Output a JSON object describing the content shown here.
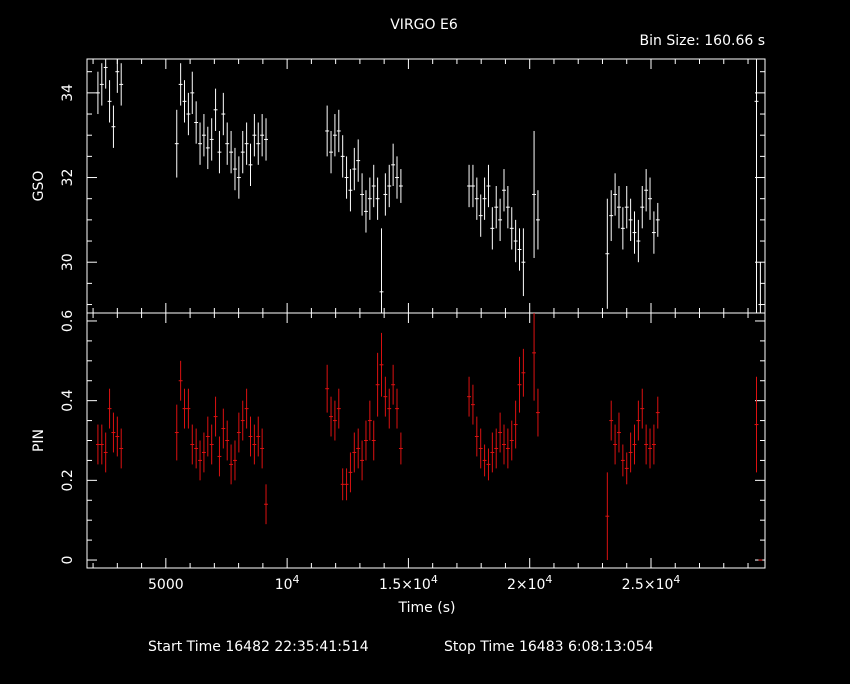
{
  "chart_data": {
    "type": "scatter",
    "title": "VIRGO E6",
    "bin_size_label": "Bin Size:  160.66 s",
    "xlabel": "Time (s)",
    "xlim": [
      1750,
      29700
    ],
    "x_ticks": [
      {
        "value": 5000,
        "label": "5000"
      },
      {
        "value": 10000,
        "label": "10",
        "exp": "4"
      },
      {
        "value": 15000,
        "label": "1.5×10",
        "exp": "4"
      },
      {
        "value": 20000,
        "label": "2×10",
        "exp": "4"
      },
      {
        "value": 25000,
        "label": "2.5×10",
        "exp": "4"
      }
    ],
    "footer": {
      "start_label": "Start Time 16482 22:35:41:514",
      "stop_label": "Stop Time 16483  6:08:13:054"
    },
    "panels": [
      {
        "name": "GSO",
        "ylabel": "GSO",
        "color": "#ffffff",
        "ylim": [
          28.8,
          34.8
        ],
        "y_ticks": [
          30,
          32,
          34
        ],
        "y_tick_labels": [
          "30",
          "32",
          "34"
        ],
        "points": [
          {
            "x": 2200,
            "y": 34.0,
            "yerr": 0.5
          },
          {
            "x": 2360,
            "y": 34.2,
            "yerr": 0.5
          },
          {
            "x": 2520,
            "y": 34.6,
            "yerr": 0.5
          },
          {
            "x": 2680,
            "y": 33.8,
            "yerr": 0.5
          },
          {
            "x": 2840,
            "y": 33.2,
            "yerr": 0.5
          },
          {
            "x": 3000,
            "y": 34.5,
            "yerr": 0.5
          },
          {
            "x": 3160,
            "y": 34.2,
            "yerr": 0.5
          },
          {
            "x": 5450,
            "y": 32.8,
            "yerr": 0.8
          },
          {
            "x": 5610,
            "y": 34.2,
            "yerr": 0.5
          },
          {
            "x": 5770,
            "y": 33.8,
            "yerr": 0.5
          },
          {
            "x": 5930,
            "y": 33.5,
            "yerr": 0.5
          },
          {
            "x": 6090,
            "y": 34.0,
            "yerr": 0.5
          },
          {
            "x": 6250,
            "y": 33.3,
            "yerr": 0.5
          },
          {
            "x": 6410,
            "y": 32.8,
            "yerr": 0.5
          },
          {
            "x": 6570,
            "y": 33.0,
            "yerr": 0.5
          },
          {
            "x": 6730,
            "y": 32.7,
            "yerr": 0.5
          },
          {
            "x": 6890,
            "y": 32.9,
            "yerr": 0.5
          },
          {
            "x": 7050,
            "y": 33.6,
            "yerr": 0.5
          },
          {
            "x": 7210,
            "y": 32.6,
            "yerr": 0.5
          },
          {
            "x": 7370,
            "y": 33.5,
            "yerr": 0.5
          },
          {
            "x": 7530,
            "y": 32.8,
            "yerr": 0.5
          },
          {
            "x": 7690,
            "y": 32.6,
            "yerr": 0.5
          },
          {
            "x": 7850,
            "y": 32.2,
            "yerr": 0.5
          },
          {
            "x": 8010,
            "y": 32.0,
            "yerr": 0.5
          },
          {
            "x": 8170,
            "y": 32.6,
            "yerr": 0.5
          },
          {
            "x": 8330,
            "y": 32.8,
            "yerr": 0.5
          },
          {
            "x": 8490,
            "y": 32.3,
            "yerr": 0.5
          },
          {
            "x": 8650,
            "y": 33.0,
            "yerr": 0.5
          },
          {
            "x": 8810,
            "y": 32.8,
            "yerr": 0.5
          },
          {
            "x": 8970,
            "y": 33.0,
            "yerr": 0.5
          },
          {
            "x": 9130,
            "y": 32.9,
            "yerr": 0.5
          },
          {
            "x": 11650,
            "y": 33.1,
            "yerr": 0.6
          },
          {
            "x": 11810,
            "y": 32.6,
            "yerr": 0.5
          },
          {
            "x": 11970,
            "y": 33.0,
            "yerr": 0.5
          },
          {
            "x": 12130,
            "y": 33.1,
            "yerr": 0.5
          },
          {
            "x": 12290,
            "y": 32.5,
            "yerr": 0.5
          },
          {
            "x": 12450,
            "y": 32.0,
            "yerr": 0.5
          },
          {
            "x": 12610,
            "y": 31.7,
            "yerr": 0.5
          },
          {
            "x": 12770,
            "y": 32.2,
            "yerr": 0.5
          },
          {
            "x": 12930,
            "y": 32.4,
            "yerr": 0.5
          },
          {
            "x": 13090,
            "y": 31.6,
            "yerr": 0.5
          },
          {
            "x": 13250,
            "y": 31.2,
            "yerr": 0.5
          },
          {
            "x": 13410,
            "y": 31.5,
            "yerr": 0.5
          },
          {
            "x": 13570,
            "y": 31.8,
            "yerr": 0.5
          },
          {
            "x": 13730,
            "y": 31.5,
            "yerr": 0.5
          },
          {
            "x": 13890,
            "y": 29.3,
            "yerr": 1.5
          },
          {
            "x": 14050,
            "y": 31.6,
            "yerr": 0.5
          },
          {
            "x": 14210,
            "y": 31.8,
            "yerr": 0.5
          },
          {
            "x": 14370,
            "y": 32.3,
            "yerr": 0.5
          },
          {
            "x": 14530,
            "y": 32.0,
            "yerr": 0.5
          },
          {
            "x": 14690,
            "y": 31.8,
            "yerr": 0.4
          },
          {
            "x": 17500,
            "y": 31.8,
            "yerr": 0.5
          },
          {
            "x": 17660,
            "y": 31.8,
            "yerr": 0.5
          },
          {
            "x": 17820,
            "y": 31.5,
            "yerr": 0.5
          },
          {
            "x": 17980,
            "y": 31.1,
            "yerr": 0.5
          },
          {
            "x": 18140,
            "y": 31.5,
            "yerr": 0.5
          },
          {
            "x": 18300,
            "y": 31.8,
            "yerr": 0.5
          },
          {
            "x": 18460,
            "y": 30.8,
            "yerr": 0.5
          },
          {
            "x": 18620,
            "y": 31.3,
            "yerr": 0.5
          },
          {
            "x": 18780,
            "y": 31.0,
            "yerr": 0.5
          },
          {
            "x": 18940,
            "y": 31.7,
            "yerr": 0.5
          },
          {
            "x": 19100,
            "y": 31.3,
            "yerr": 0.5
          },
          {
            "x": 19260,
            "y": 30.8,
            "yerr": 0.5
          },
          {
            "x": 19420,
            "y": 30.5,
            "yerr": 0.5
          },
          {
            "x": 19580,
            "y": 30.3,
            "yerr": 0.5
          },
          {
            "x": 19740,
            "y": 30.0,
            "yerr": 0.8
          },
          {
            "x": 20180,
            "y": 31.6,
            "yerr": 1.5
          },
          {
            "x": 20340,
            "y": 31.0,
            "yerr": 0.7
          },
          {
            "x": 23200,
            "y": 30.2,
            "yerr": 1.3
          },
          {
            "x": 23360,
            "y": 31.1,
            "yerr": 0.6
          },
          {
            "x": 23520,
            "y": 31.6,
            "yerr": 0.5
          },
          {
            "x": 23680,
            "y": 31.3,
            "yerr": 0.5
          },
          {
            "x": 23840,
            "y": 30.8,
            "yerr": 0.5
          },
          {
            "x": 24000,
            "y": 31.3,
            "yerr": 0.5
          },
          {
            "x": 24160,
            "y": 31.0,
            "yerr": 0.5
          },
          {
            "x": 24320,
            "y": 30.7,
            "yerr": 0.5
          },
          {
            "x": 24480,
            "y": 30.5,
            "yerr": 0.5
          },
          {
            "x": 24640,
            "y": 31.3,
            "yerr": 0.5
          },
          {
            "x": 24800,
            "y": 31.7,
            "yerr": 0.5
          },
          {
            "x": 24960,
            "y": 31.5,
            "yerr": 0.5
          },
          {
            "x": 25120,
            "y": 30.7,
            "yerr": 0.5
          },
          {
            "x": 25280,
            "y": 31.0,
            "yerr": 0.4
          },
          {
            "x": 29350,
            "y": 33.8,
            "yerr": 5.0
          },
          {
            "x": 29510,
            "y": 29.0,
            "yerr": 1.0
          }
        ]
      },
      {
        "name": "PIN",
        "ylabel": "PIN",
        "color": "#dd1111",
        "ylim": [
          -0.02,
          0.62
        ],
        "y_ticks": [
          0,
          0.2,
          0.4,
          0.6
        ],
        "y_tick_labels": [
          "0",
          "0.2",
          "0.4",
          "0.6"
        ],
        "points": [
          {
            "x": 2200,
            "y": 0.29,
            "yerr": 0.05
          },
          {
            "x": 2360,
            "y": 0.29,
            "yerr": 0.05
          },
          {
            "x": 2520,
            "y": 0.27,
            "yerr": 0.05
          },
          {
            "x": 2680,
            "y": 0.38,
            "yerr": 0.05
          },
          {
            "x": 2840,
            "y": 0.32,
            "yerr": 0.05
          },
          {
            "x": 3000,
            "y": 0.31,
            "yerr": 0.05
          },
          {
            "x": 3160,
            "y": 0.28,
            "yerr": 0.05
          },
          {
            "x": 5450,
            "y": 0.32,
            "yerr": 0.07
          },
          {
            "x": 5610,
            "y": 0.45,
            "yerr": 0.05
          },
          {
            "x": 5770,
            "y": 0.38,
            "yerr": 0.05
          },
          {
            "x": 5930,
            "y": 0.38,
            "yerr": 0.05
          },
          {
            "x": 6090,
            "y": 0.29,
            "yerr": 0.05
          },
          {
            "x": 6250,
            "y": 0.28,
            "yerr": 0.05
          },
          {
            "x": 6410,
            "y": 0.25,
            "yerr": 0.05
          },
          {
            "x": 6570,
            "y": 0.27,
            "yerr": 0.05
          },
          {
            "x": 6730,
            "y": 0.31,
            "yerr": 0.05
          },
          {
            "x": 6890,
            "y": 0.29,
            "yerr": 0.05
          },
          {
            "x": 7050,
            "y": 0.36,
            "yerr": 0.05
          },
          {
            "x": 7210,
            "y": 0.26,
            "yerr": 0.05
          },
          {
            "x": 7370,
            "y": 0.33,
            "yerr": 0.05
          },
          {
            "x": 7530,
            "y": 0.3,
            "yerr": 0.05
          },
          {
            "x": 7690,
            "y": 0.24,
            "yerr": 0.05
          },
          {
            "x": 7850,
            "y": 0.25,
            "yerr": 0.05
          },
          {
            "x": 8010,
            "y": 0.32,
            "yerr": 0.05
          },
          {
            "x": 8170,
            "y": 0.35,
            "yerr": 0.05
          },
          {
            "x": 8330,
            "y": 0.38,
            "yerr": 0.05
          },
          {
            "x": 8490,
            "y": 0.31,
            "yerr": 0.05
          },
          {
            "x": 8650,
            "y": 0.29,
            "yerr": 0.05
          },
          {
            "x": 8810,
            "y": 0.31,
            "yerr": 0.05
          },
          {
            "x": 8970,
            "y": 0.28,
            "yerr": 0.05
          },
          {
            "x": 9130,
            "y": 0.14,
            "yerr": 0.05
          },
          {
            "x": 11650,
            "y": 0.43,
            "yerr": 0.06
          },
          {
            "x": 11810,
            "y": 0.36,
            "yerr": 0.05
          },
          {
            "x": 11970,
            "y": 0.35,
            "yerr": 0.05
          },
          {
            "x": 12130,
            "y": 0.38,
            "yerr": 0.05
          },
          {
            "x": 12290,
            "y": 0.19,
            "yerr": 0.04
          },
          {
            "x": 12450,
            "y": 0.19,
            "yerr": 0.04
          },
          {
            "x": 12610,
            "y": 0.22,
            "yerr": 0.05
          },
          {
            "x": 12770,
            "y": 0.27,
            "yerr": 0.05
          },
          {
            "x": 12930,
            "y": 0.28,
            "yerr": 0.05
          },
          {
            "x": 13090,
            "y": 0.25,
            "yerr": 0.05
          },
          {
            "x": 13250,
            "y": 0.3,
            "yerr": 0.05
          },
          {
            "x": 13410,
            "y": 0.35,
            "yerr": 0.05
          },
          {
            "x": 13570,
            "y": 0.3,
            "yerr": 0.05
          },
          {
            "x": 13730,
            "y": 0.44,
            "yerr": 0.08
          },
          {
            "x": 13890,
            "y": 0.49,
            "yerr": 0.08
          },
          {
            "x": 14050,
            "y": 0.41,
            "yerr": 0.05
          },
          {
            "x": 14210,
            "y": 0.38,
            "yerr": 0.05
          },
          {
            "x": 14370,
            "y": 0.44,
            "yerr": 0.05
          },
          {
            "x": 14530,
            "y": 0.38,
            "yerr": 0.05
          },
          {
            "x": 14690,
            "y": 0.28,
            "yerr": 0.04
          },
          {
            "x": 17500,
            "y": 0.41,
            "yerr": 0.05
          },
          {
            "x": 17660,
            "y": 0.39,
            "yerr": 0.05
          },
          {
            "x": 17820,
            "y": 0.31,
            "yerr": 0.05
          },
          {
            "x": 17980,
            "y": 0.28,
            "yerr": 0.05
          },
          {
            "x": 18140,
            "y": 0.25,
            "yerr": 0.04
          },
          {
            "x": 18300,
            "y": 0.24,
            "yerr": 0.04
          },
          {
            "x": 18460,
            "y": 0.27,
            "yerr": 0.05
          },
          {
            "x": 18620,
            "y": 0.28,
            "yerr": 0.05
          },
          {
            "x": 18780,
            "y": 0.32,
            "yerr": 0.05
          },
          {
            "x": 18940,
            "y": 0.29,
            "yerr": 0.05
          },
          {
            "x": 19100,
            "y": 0.28,
            "yerr": 0.05
          },
          {
            "x": 19260,
            "y": 0.3,
            "yerr": 0.05
          },
          {
            "x": 19420,
            "y": 0.34,
            "yerr": 0.06
          },
          {
            "x": 19580,
            "y": 0.44,
            "yerr": 0.07
          },
          {
            "x": 19740,
            "y": 0.47,
            "yerr": 0.06
          },
          {
            "x": 20180,
            "y": 0.52,
            "yerr": 0.12
          },
          {
            "x": 20340,
            "y": 0.37,
            "yerr": 0.06
          },
          {
            "x": 23200,
            "y": 0.11,
            "yerr": 0.11
          },
          {
            "x": 23360,
            "y": 0.35,
            "yerr": 0.05
          },
          {
            "x": 23520,
            "y": 0.29,
            "yerr": 0.05
          },
          {
            "x": 23680,
            "y": 0.32,
            "yerr": 0.05
          },
          {
            "x": 23840,
            "y": 0.25,
            "yerr": 0.04
          },
          {
            "x": 24000,
            "y": 0.23,
            "yerr": 0.04
          },
          {
            "x": 24160,
            "y": 0.27,
            "yerr": 0.05
          },
          {
            "x": 24320,
            "y": 0.29,
            "yerr": 0.05
          },
          {
            "x": 24480,
            "y": 0.35,
            "yerr": 0.05
          },
          {
            "x": 24640,
            "y": 0.38,
            "yerr": 0.05
          },
          {
            "x": 24800,
            "y": 0.29,
            "yerr": 0.05
          },
          {
            "x": 24960,
            "y": 0.28,
            "yerr": 0.05
          },
          {
            "x": 25120,
            "y": 0.29,
            "yerr": 0.05
          },
          {
            "x": 25280,
            "y": 0.37,
            "yerr": 0.04
          },
          {
            "x": 29350,
            "y": 0.34,
            "yerr": 0.12
          },
          {
            "x": 29510,
            "y": 0.0,
            "yerr": 0.0
          }
        ]
      }
    ]
  }
}
